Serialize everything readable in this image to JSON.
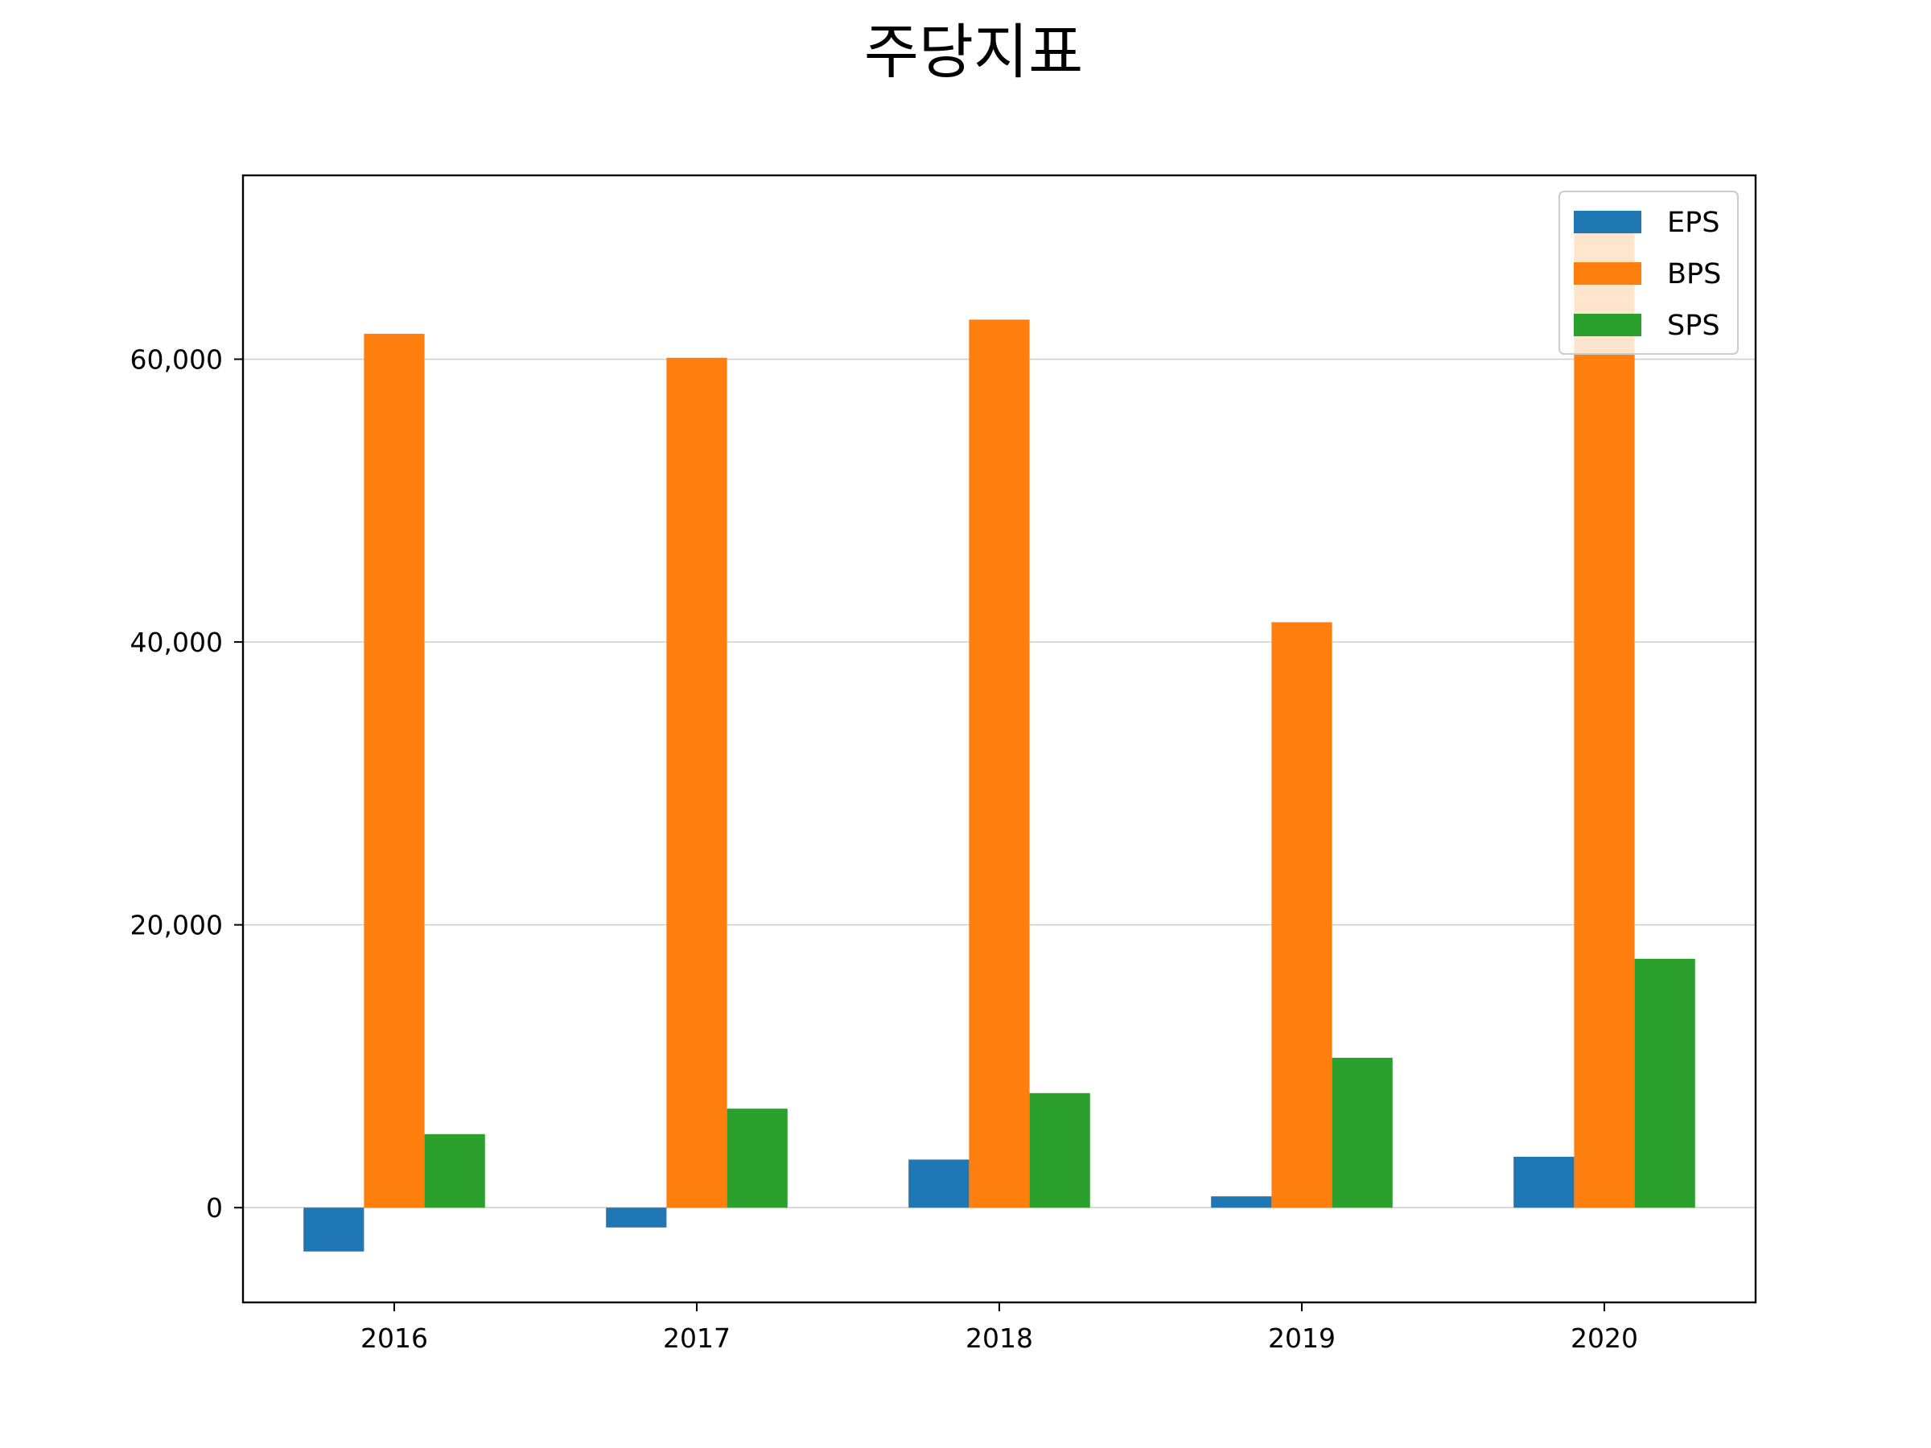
{
  "chart_data": {
    "type": "bar",
    "title": "주당지표",
    "xlabel": "",
    "ylabel": "",
    "categories": [
      "2016",
      "2017",
      "2018",
      "2019",
      "2020"
    ],
    "series": [
      {
        "name": "EPS",
        "color": "#1f77b4",
        "values": [
          -3100,
          -1400,
          3400,
          800,
          3600
        ]
      },
      {
        "name": "BPS",
        "color": "#ff7f0e",
        "values": [
          61800,
          60100,
          62800,
          41400,
          69200
        ]
      },
      {
        "name": "SPS",
        "color": "#2ca02c",
        "values": [
          5200,
          7000,
          8100,
          10600,
          17600
        ]
      }
    ],
    "ylim": [
      -6700,
      73000
    ],
    "yticks": [
      0,
      20000,
      40000,
      60000
    ],
    "ytick_labels": [
      "0",
      "20,000",
      "40,000",
      "60,000"
    ],
    "grid": "horizontal",
    "legend": "top-right"
  }
}
